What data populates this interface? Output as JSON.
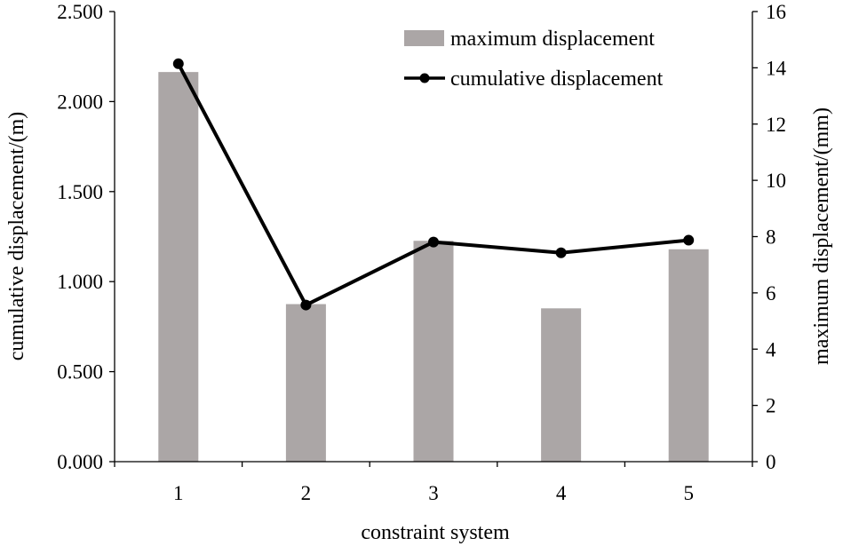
{
  "chart_data": {
    "type": "bar",
    "categories": [
      "1",
      "2",
      "3",
      "4",
      "5"
    ],
    "xlabel": "constraint system",
    "ylabel_left": "cumulative displacement/(m)",
    "ylabel_right": "maximum displacement/(mm)",
    "ylim_left": [
      0,
      2.5
    ],
    "ylim_right": [
      0,
      16
    ],
    "yticks_left": [
      "0.000",
      "0.500",
      "1.000",
      "1.500",
      "2.000",
      "2.500"
    ],
    "yticks_right": [
      "0",
      "2",
      "4",
      "6",
      "8",
      "10",
      "12",
      "14",
      "16"
    ],
    "grid": false,
    "legend_position": "top-right",
    "series": [
      {
        "name": "maximum displacement",
        "kind": "bar",
        "axis": "right",
        "color": "#aba6a6",
        "values": [
          13.85,
          5.6,
          7.85,
          5.45,
          7.55
        ]
      },
      {
        "name": "cumulative displacement",
        "kind": "line",
        "axis": "left",
        "color": "#000000",
        "values": [
          2.21,
          0.87,
          1.22,
          1.16,
          1.23
        ]
      }
    ]
  }
}
